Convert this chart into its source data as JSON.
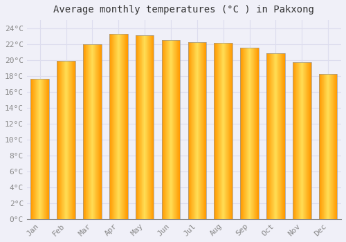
{
  "title": "Average monthly temperatures (°C ) in Pakxong",
  "months": [
    "Jan",
    "Feb",
    "Mar",
    "Apr",
    "May",
    "Jun",
    "Jul",
    "Aug",
    "Sep",
    "Oct",
    "Nov",
    "Dec"
  ],
  "values": [
    17.6,
    19.9,
    22.0,
    23.3,
    23.1,
    22.5,
    22.2,
    22.1,
    21.5,
    20.8,
    19.7,
    18.2
  ],
  "bar_color_face": "#FFA500",
  "bar_color_light": "#FFD060",
  "bar_color_edge": "#888888",
  "background_color": "#F0F0F8",
  "plot_bg_color": "#F0F0F8",
  "grid_color": "#DDDDEE",
  "ytick_labels": [
    "0°C",
    "2°C",
    "4°C",
    "6°C",
    "8°C",
    "10°C",
    "12°C",
    "14°C",
    "16°C",
    "18°C",
    "20°C",
    "22°C",
    "24°C"
  ],
  "ytick_values": [
    0,
    2,
    4,
    6,
    8,
    10,
    12,
    14,
    16,
    18,
    20,
    22,
    24
  ],
  "ylim": [
    0,
    25
  ],
  "title_fontsize": 10,
  "tick_fontsize": 8,
  "title_color": "#333333",
  "tick_color": "#888888",
  "bar_width": 0.7
}
